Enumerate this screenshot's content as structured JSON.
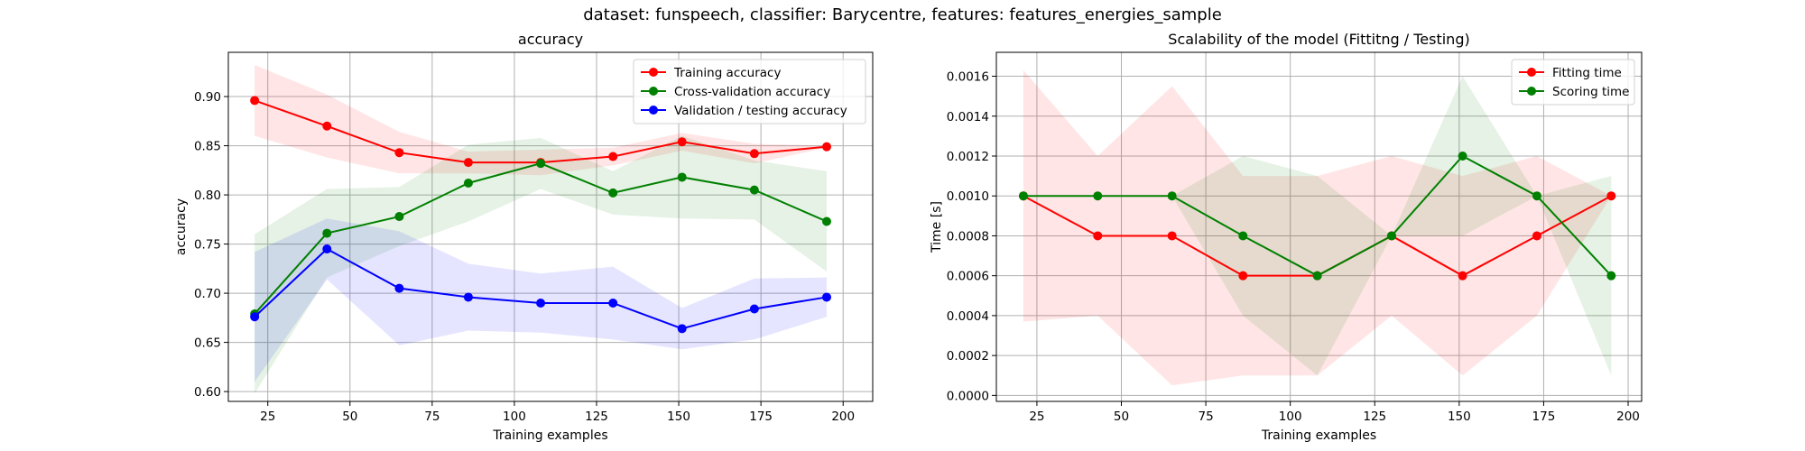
{
  "suptitle": "dataset: funspeech, classifier: Barycentre, features: features_energies_sample",
  "chart_data": [
    {
      "type": "line",
      "title": "accuracy",
      "xlabel": "Training examples",
      "ylabel": "accuracy",
      "xlim": [
        13,
        209
      ],
      "ylim": [
        0.59,
        0.945
      ],
      "xticks": [
        25,
        50,
        75,
        100,
        125,
        150,
        175,
        200
      ],
      "yticks": [
        0.6,
        0.65,
        0.7,
        0.75,
        0.8,
        0.85,
        0.9
      ],
      "ytick_decimals": 2,
      "grid": true,
      "legend_position": "top-right",
      "x": [
        21,
        43,
        65,
        86,
        108,
        130,
        151,
        173,
        195
      ],
      "series": [
        {
          "name": "Training accuracy",
          "color": "#ff0000",
          "values": [
            0.896,
            0.87,
            0.843,
            0.833,
            0.833,
            0.839,
            0.854,
            0.842,
            0.849
          ],
          "lower": [
            0.86,
            0.838,
            0.822,
            0.822,
            0.82,
            0.83,
            0.845,
            0.832,
            0.848
          ],
          "upper": [
            0.932,
            0.902,
            0.864,
            0.844,
            0.846,
            0.848,
            0.863,
            0.852,
            0.85
          ]
        },
        {
          "name": "Cross-validation accuracy",
          "color": "#008000",
          "values": [
            0.679,
            0.761,
            0.778,
            0.812,
            0.832,
            0.802,
            0.818,
            0.805,
            0.773
          ],
          "lower": [
            0.598,
            0.716,
            0.748,
            0.773,
            0.806,
            0.78,
            0.776,
            0.775,
            0.722
          ],
          "upper": [
            0.76,
            0.806,
            0.808,
            0.851,
            0.858,
            0.824,
            0.86,
            0.835,
            0.824
          ]
        },
        {
          "name": "Validation / testing accuracy",
          "color": "#0000ff",
          "values": [
            0.676,
            0.745,
            0.705,
            0.696,
            0.69,
            0.69,
            0.664,
            0.684,
            0.696
          ],
          "lower": [
            0.61,
            0.714,
            0.647,
            0.662,
            0.66,
            0.653,
            0.643,
            0.653,
            0.676
          ],
          "upper": [
            0.742,
            0.776,
            0.763,
            0.73,
            0.72,
            0.727,
            0.685,
            0.715,
            0.716
          ]
        }
      ]
    },
    {
      "type": "line",
      "title": "Scalability of the model (Fittitng / Testing)",
      "xlabel": "Training examples",
      "ylabel": "Time [s]",
      "xlim": [
        13,
        204
      ],
      "ylim": [
        -3e-05,
        0.00172
      ],
      "xticks": [
        25,
        50,
        75,
        100,
        125,
        150,
        175,
        200
      ],
      "yticks": [
        0.0,
        0.0002,
        0.0004,
        0.0006,
        0.0008,
        0.001,
        0.0012,
        0.0014,
        0.0016
      ],
      "ytick_decimals": 4,
      "grid": true,
      "legend_position": "top-right",
      "x": [
        21,
        43,
        65,
        86,
        108,
        130,
        151,
        173,
        195
      ],
      "series": [
        {
          "name": "Fitting time",
          "color": "#ff0000",
          "values": [
            0.001,
            0.0008,
            0.0008,
            0.0006,
            0.0006,
            0.0008,
            0.0006,
            0.0008,
            0.001
          ],
          "lower": [
            0.00037,
            0.0004,
            5e-05,
            0.0001,
            0.0001,
            0.0004,
            0.0001,
            0.0004,
            0.001
          ],
          "upper": [
            0.00163,
            0.0012,
            0.00155,
            0.0011,
            0.0011,
            0.0012,
            0.0011,
            0.0012,
            0.001
          ]
        },
        {
          "name": "Scoring time",
          "color": "#008000",
          "values": [
            0.001,
            0.001,
            0.001,
            0.0008,
            0.0006,
            0.0008,
            0.0012,
            0.001,
            0.0006
          ],
          "lower": [
            0.001,
            0.001,
            0.001,
            0.0004,
            0.0001,
            0.0008,
            0.0008,
            0.001,
            0.0001
          ],
          "upper": [
            0.001,
            0.001,
            0.001,
            0.0012,
            0.0011,
            0.0008,
            0.0016,
            0.001,
            0.0011
          ]
        }
      ]
    }
  ]
}
